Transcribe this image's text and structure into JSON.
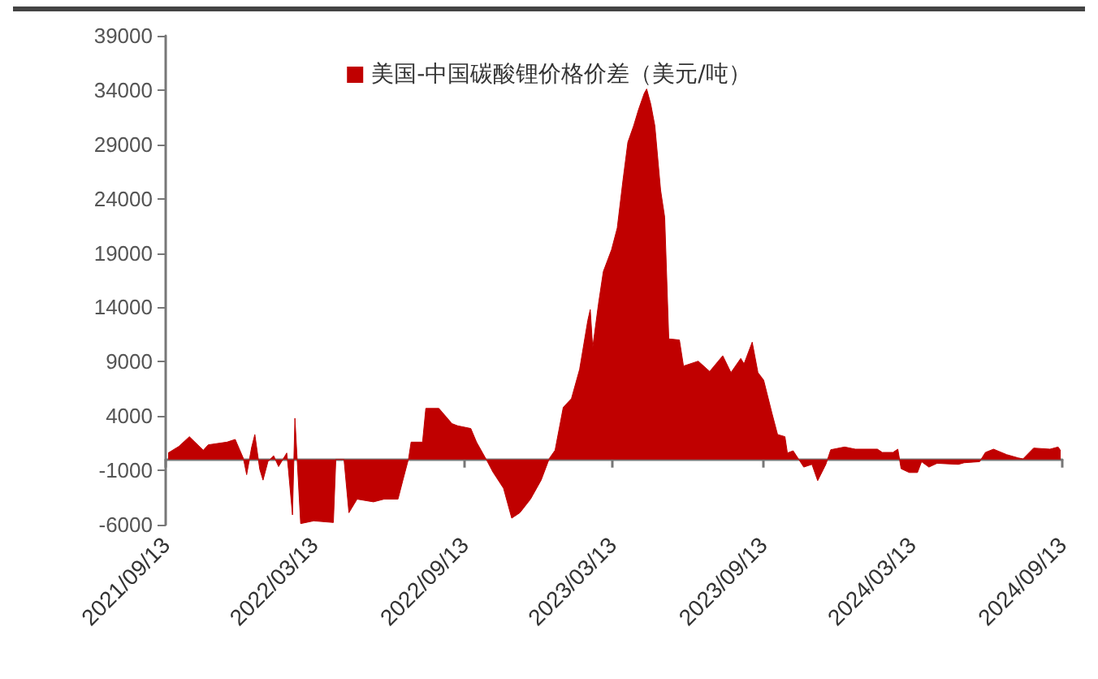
{
  "chart_data": {
    "type": "area",
    "legend": "top",
    "x": [
      "2021-09-16",
      "2021-09-29",
      "2021-10-12",
      "2021-10-29",
      "2021-11-04",
      "2021-11-27",
      "2021-12-07",
      "2021-12-17",
      "2021-12-21",
      "2021-12-27",
      "2021-12-31",
      "2022-01-06",
      "2022-01-10",
      "2022-01-16",
      "2022-01-23",
      "2022-01-29",
      "2022-02-08",
      "2022-02-10",
      "2022-02-15",
      "2022-02-18",
      "2022-02-25",
      "2022-03-13",
      "2022-04-06",
      "2022-04-09",
      "2022-04-19",
      "2022-04-25",
      "2022-05-05",
      "2022-05-25",
      "2022-06-07",
      "2022-06-24",
      "2022-06-30",
      "2022-07-07",
      "2022-07-10",
      "2022-07-24",
      "2022-07-28",
      "2022-08-13",
      "2022-08-29",
      "2022-09-05",
      "2022-09-21",
      "2022-09-28",
      "2022-10-11",
      "2022-10-18",
      "2022-10-31",
      "2022-11-10",
      "2022-11-20",
      "2022-12-03",
      "2022-12-16",
      "2022-12-26",
      "2023-01-02",
      "2023-01-12",
      "2023-01-22",
      "2023-02-01",
      "2023-02-11",
      "2023-02-14",
      "2023-02-17",
      "2023-02-24",
      "2023-03-02",
      "2023-03-12",
      "2023-03-19",
      "2023-03-26",
      "2023-04-01",
      "2023-04-08",
      "2023-04-14",
      "2023-04-21",
      "2023-04-24",
      "2023-04-29",
      "2023-05-04",
      "2023-05-11",
      "2023-05-16",
      "2023-05-21",
      "2023-06-03",
      "2023-06-08",
      "2023-06-26",
      "2023-07-10",
      "2023-07-26",
      "2023-08-05",
      "2023-08-17",
      "2023-08-21",
      "2023-08-31",
      "2023-09-07",
      "2023-09-14",
      "2023-09-24",
      "2023-10-01",
      "2023-10-10",
      "2023-10-13",
      "2023-10-20",
      "2023-10-27",
      "2023-11-02",
      "2023-11-12",
      "2023-11-19",
      "2023-11-29",
      "2023-12-05",
      "2023-12-22",
      "2024-01-04",
      "2024-01-31",
      "2024-02-06",
      "2024-02-19",
      "2024-02-25",
      "2024-02-29",
      "2024-03-10",
      "2024-03-20",
      "2024-03-25",
      "2024-04-03",
      "2024-04-13",
      "2024-05-09",
      "2024-05-16",
      "2024-06-04",
      "2024-06-11",
      "2024-06-21",
      "2024-07-07",
      "2024-07-21",
      "2024-07-27",
      "2024-08-09",
      "2024-08-29",
      "2024-09-08",
      "2024-09-11"
    ],
    "series": [
      {
        "name": "美国-中国碳酸锂价格价差（美元/吨）",
        "color": "#c00000",
        "values": [
          600,
          1200,
          2100,
          850,
          1350,
          1600,
          1850,
          100,
          -1400,
          1100,
          2300,
          -900,
          -1900,
          -200,
          350,
          -650,
          600,
          -900,
          -5100,
          3800,
          -5900,
          -5650,
          -5800,
          0,
          0,
          -4900,
          -3650,
          -3900,
          -3650,
          -3650,
          -1900,
          100,
          1600,
          1600,
          4700,
          4700,
          3300,
          3100,
          2850,
          1600,
          -150,
          -1150,
          -2650,
          -5400,
          -4900,
          -3650,
          -1900,
          100,
          850,
          4800,
          5600,
          8300,
          12800,
          13800,
          10300,
          14300,
          17300,
          19300,
          21300,
          25700,
          29200,
          30700,
          32200,
          33700,
          34100,
          32700,
          30700,
          24800,
          22300,
          11100,
          11000,
          8600,
          9050,
          8100,
          9550,
          8000,
          9300,
          8800,
          10800,
          8000,
          7300,
          4300,
          2300,
          2100,
          600,
          800,
          0,
          -700,
          -450,
          -1950,
          -450,
          900,
          1150,
          950,
          950,
          650,
          650,
          950,
          -850,
          -1200,
          -1200,
          -200,
          -700,
          -350,
          -450,
          -300,
          -200,
          650,
          950,
          450,
          150,
          50,
          1050,
          950,
          1150,
          800
        ]
      }
    ],
    "xlim": [
      "2021-09-13",
      "2024-09-13"
    ],
    "xticks": [
      {
        "value": "2021-09-13",
        "label": "2021/09/13"
      },
      {
        "value": "2022-03-13",
        "label": "2022/03/13"
      },
      {
        "value": "2022-09-13",
        "label": "2022/09/13"
      },
      {
        "value": "2023-03-13",
        "label": "2023/03/13"
      },
      {
        "value": "2023-09-13",
        "label": "2023/09/13"
      },
      {
        "value": "2024-03-13",
        "label": "2024/03/13"
      },
      {
        "value": "2024-09-13",
        "label": "2024/09/13"
      }
    ],
    "ylim": [
      -6000,
      39000
    ],
    "yticks": [
      -6000,
      -1000,
      4000,
      9000,
      14000,
      19000,
      24000,
      29000,
      34000,
      39000
    ],
    "grid": false
  }
}
